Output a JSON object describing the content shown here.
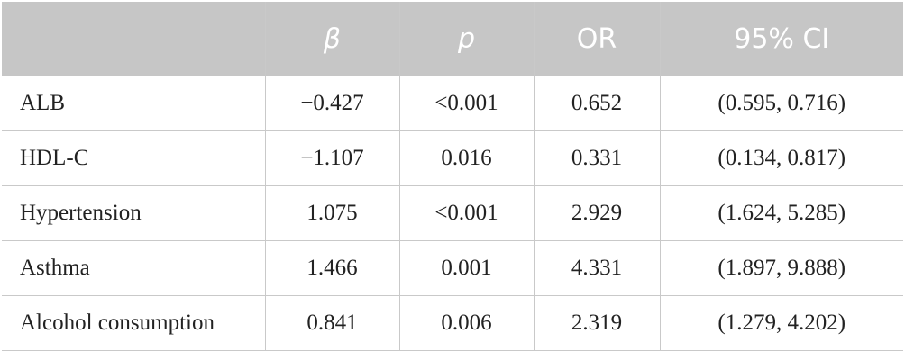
{
  "table": {
    "headers": [
      "",
      "β",
      "p",
      "OR",
      "95% CI"
    ],
    "rows": [
      [
        "ALB",
        "−0.427",
        "<0.001",
        "0.652",
        "(0.595, 0.716)"
      ],
      [
        "HDL-C",
        "−1.107",
        "0.016",
        "0.331",
        "(0.134, 0.817)"
      ],
      [
        "Hypertension",
        "1.075",
        "<0.001",
        "2.929",
        "(1.624, 5.285)"
      ],
      [
        "Asthma",
        "1.466",
        "0.001",
        "4.331",
        "(1.897, 9.888)"
      ],
      [
        "Alcohol consumption",
        "0.841",
        "0.006",
        "2.319",
        "(1.279, 4.202)"
      ]
    ]
  },
  "colors": {
    "header_bg": "#c6c6c6",
    "header_text": "#ffffff",
    "border": "#c9c9c9",
    "body_text": "#222222"
  }
}
